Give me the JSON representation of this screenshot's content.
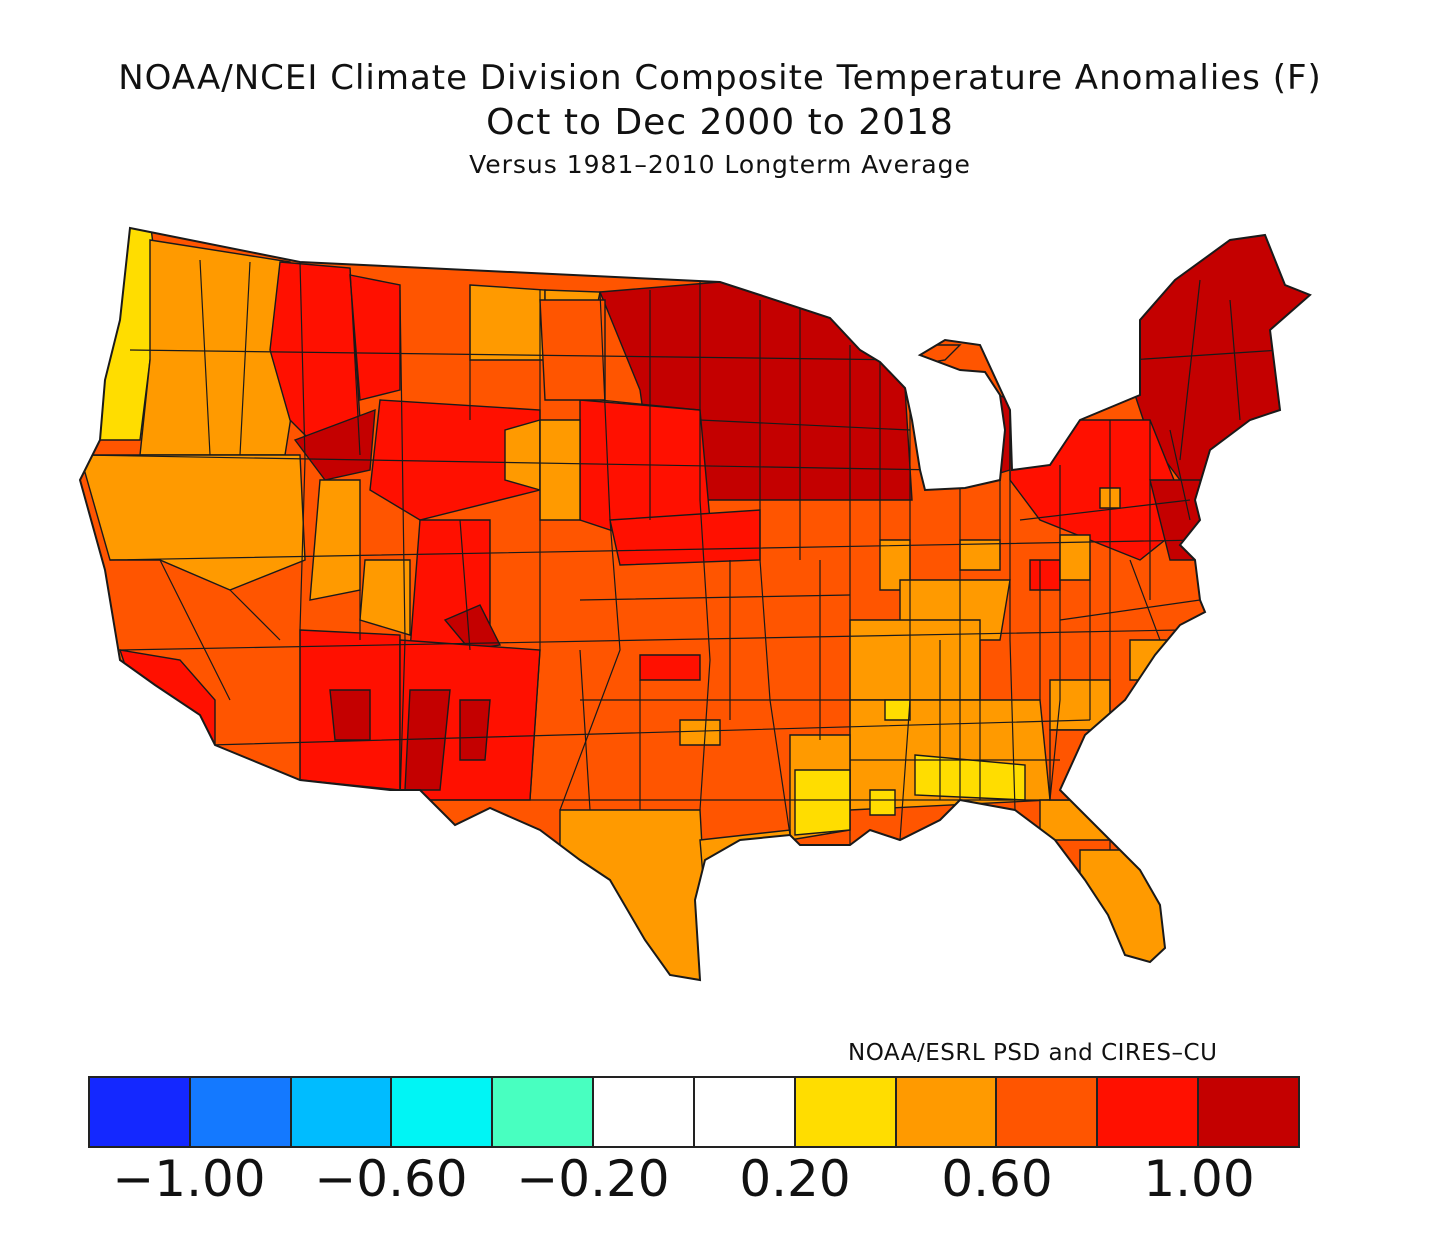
{
  "title": "NOAA/NCEI Climate Division Composite Temperature Anomalies (F)",
  "subtitle": "Oct to Dec 2000 to 2018",
  "subsubtitle": "Versus 1981–2010 Longterm Average",
  "credit": "NOAA/ESRL PSD and CIRES–CU",
  "legend": {
    "colors": [
      "#1428ff",
      "#1479ff",
      "#00bcff",
      "#00f5f5",
      "#48ffc0",
      "#ffffff",
      "#ffffff",
      "#ffdd00",
      "#ff9a00",
      "#ff5500",
      "#ff1000",
      "#c40000"
    ],
    "ticks": [
      {
        "label": "−1.00",
        "value": -1.0
      },
      {
        "label": "−0.60",
        "value": -0.6
      },
      {
        "label": "−0.20",
        "value": -0.2
      },
      {
        "label": "0.20",
        "value": 0.2
      },
      {
        "label": "0.60",
        "value": 0.6
      },
      {
        "label": "1.00",
        "value": 1.0
      }
    ]
  }
}
